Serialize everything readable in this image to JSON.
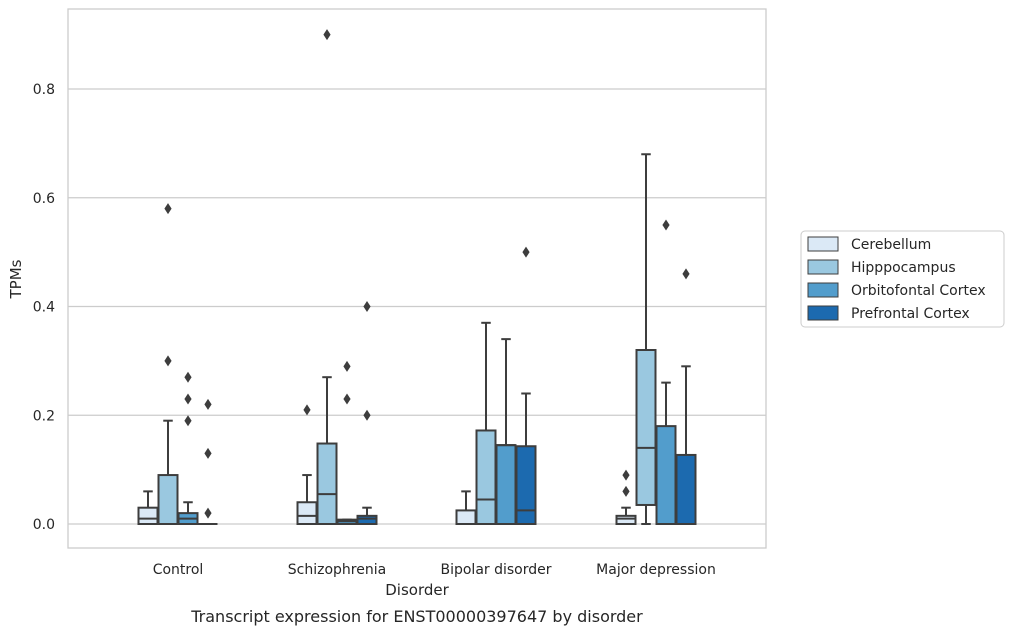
{
  "caption": "Transcript expression for ENST00000397647 by disorder",
  "chart_data": {
    "type": "box",
    "xlabel": "Disorder",
    "ylabel": "TPMs",
    "ylim": [
      -0.045,
      0.95
    ],
    "yticks": [
      0.0,
      0.2,
      0.4,
      0.6,
      0.8
    ],
    "ytick_labels": [
      "0.0",
      "0.2",
      "0.4",
      "0.6",
      "0.8"
    ],
    "grid": "horizontal",
    "legend_position": "right",
    "categories": [
      "Control",
      "Schizophrenia",
      "Bipolar disorder",
      "Major depression"
    ],
    "series": [
      {
        "name": "Cerebellum",
        "color": "#dbe9f6",
        "boxes": [
          {
            "whislo": 0.0,
            "q1": 0.0,
            "med": 0.01,
            "q3": 0.03,
            "whishi": 0.06,
            "fliers": []
          },
          {
            "whislo": 0.0,
            "q1": 0.0,
            "med": 0.015,
            "q3": 0.04,
            "whishi": 0.09,
            "fliers": [
              0.21
            ]
          },
          {
            "whislo": 0.0,
            "q1": 0.0,
            "med": 0.0,
            "q3": 0.025,
            "whishi": 0.06,
            "fliers": []
          },
          {
            "whislo": 0.0,
            "q1": 0.0,
            "med": 0.01,
            "q3": 0.015,
            "whishi": 0.03,
            "fliers": [
              0.06,
              0.09
            ]
          }
        ]
      },
      {
        "name": "Hipppocampus",
        "color": "#9ac8e0",
        "boxes": [
          {
            "whislo": 0.0,
            "q1": 0.0,
            "med": 0.0,
            "q3": 0.09,
            "whishi": 0.19,
            "fliers": [
              0.3,
              0.58
            ]
          },
          {
            "whislo": 0.0,
            "q1": 0.0,
            "med": 0.055,
            "q3": 0.148,
            "whishi": 0.27,
            "fliers": [
              0.9
            ]
          },
          {
            "whislo": 0.0,
            "q1": 0.0,
            "med": 0.045,
            "q3": 0.172,
            "whishi": 0.37,
            "fliers": []
          },
          {
            "whislo": 0.0,
            "q1": 0.035,
            "med": 0.14,
            "q3": 0.32,
            "whishi": 0.68,
            "fliers": []
          }
        ]
      },
      {
        "name": "Orbitofontal Cortex",
        "color": "#529dcc",
        "boxes": [
          {
            "whislo": 0.0,
            "q1": 0.0,
            "med": 0.01,
            "q3": 0.02,
            "whishi": 0.04,
            "fliers": [
              0.19,
              0.23,
              0.27
            ]
          },
          {
            "whislo": 0.0,
            "q1": 0.0,
            "med": 0.005,
            "q3": 0.008,
            "whishi": 0.008,
            "fliers": [
              0.23,
              0.29
            ]
          },
          {
            "whislo": 0.0,
            "q1": 0.0,
            "med": 0.145,
            "q3": 0.145,
            "whishi": 0.34,
            "fliers": []
          },
          {
            "whislo": 0.0,
            "q1": 0.0,
            "med": 0.0,
            "q3": 0.18,
            "whishi": 0.26,
            "fliers": [
              0.55
            ]
          }
        ]
      },
      {
        "name": "Prefrontal Cortex",
        "color": "#1c6aaf",
        "boxes": [
          {
            "whislo": 0.0,
            "q1": 0.0,
            "med": 0.0,
            "q3": 0.0,
            "whishi": 0.0,
            "fliers": [
              0.02,
              0.13,
              0.22
            ]
          },
          {
            "whislo": 0.0,
            "q1": 0.0,
            "med": 0.01,
            "q3": 0.015,
            "whishi": 0.03,
            "fliers": [
              0.2,
              0.4
            ]
          },
          {
            "whislo": 0.0,
            "q1": 0.0,
            "med": 0.025,
            "q3": 0.143,
            "whishi": 0.24,
            "fliers": [
              0.5
            ]
          },
          {
            "whislo": 0.0,
            "q1": 0.0,
            "med": 0.0,
            "q3": 0.127,
            "whishi": 0.29,
            "fliers": [
              0.46
            ]
          }
        ]
      }
    ]
  }
}
